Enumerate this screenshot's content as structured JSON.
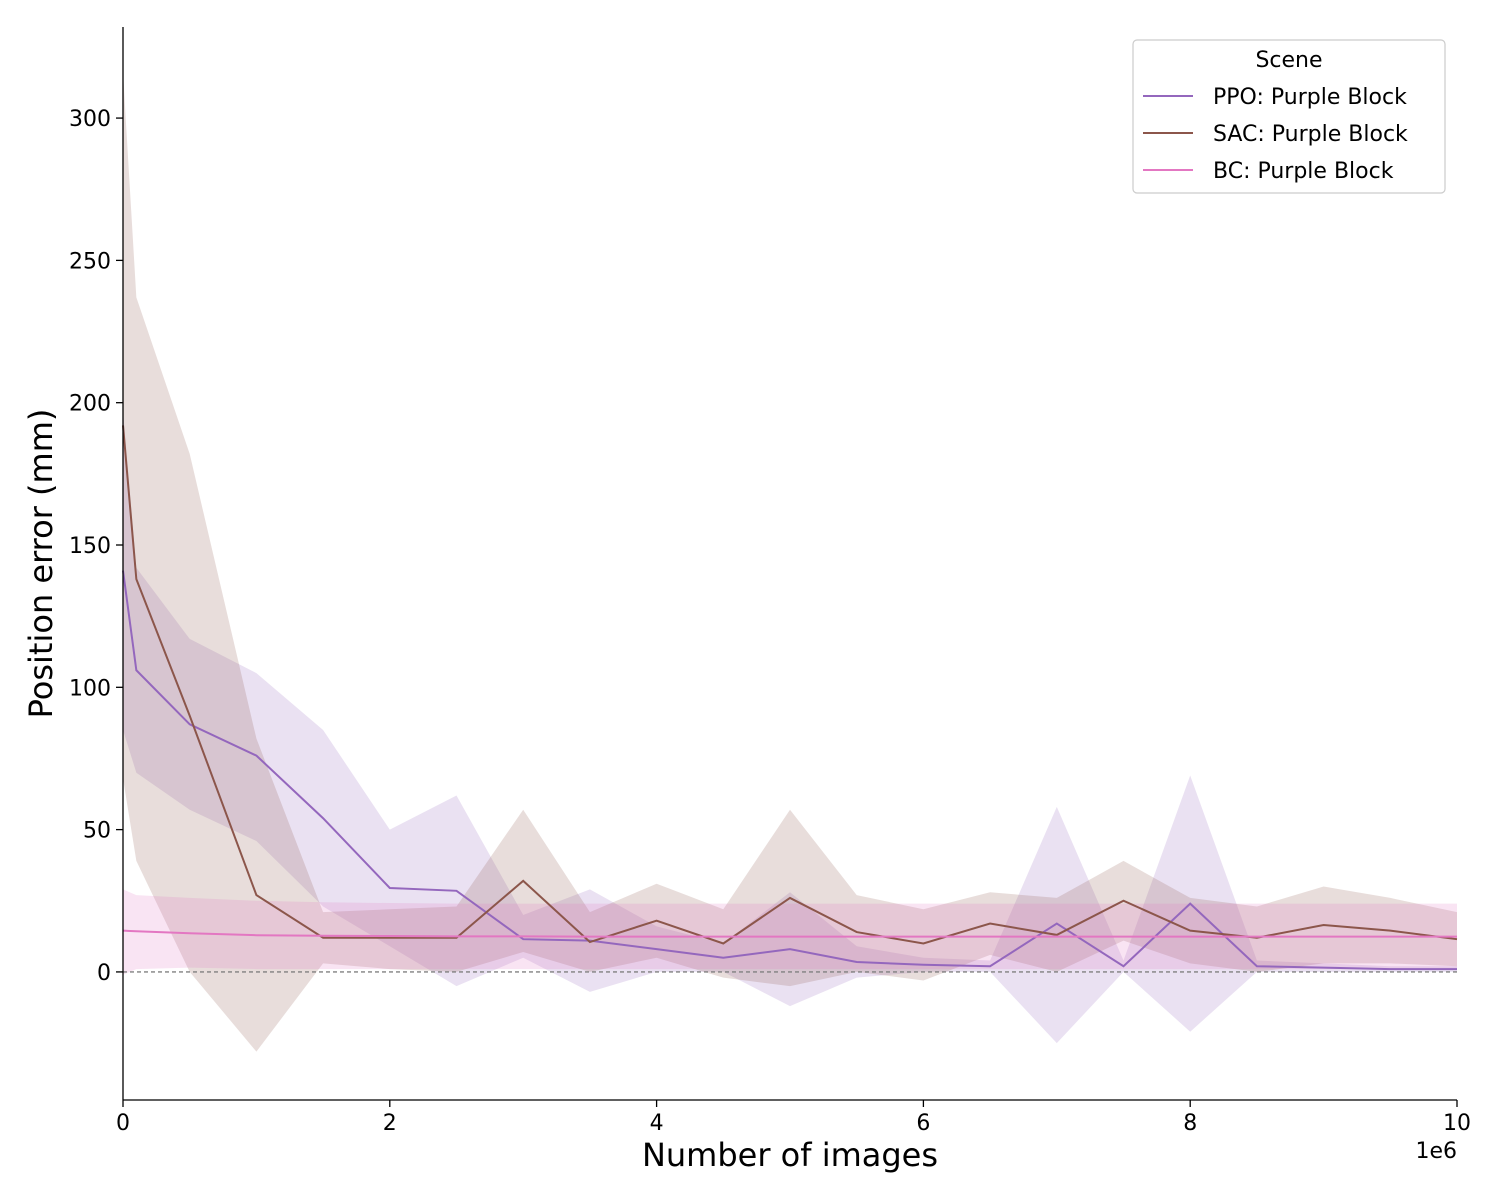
{
  "chart_data": {
    "type": "line",
    "xlabel": "Number of images",
    "ylabel": "Position error (mm)",
    "x_offset_label": "1e6",
    "xlim": [
      0,
      10
    ],
    "ylim": [
      -45,
      332
    ],
    "x_ticks": [
      0,
      2,
      4,
      6,
      8,
      10
    ],
    "y_ticks": [
      0,
      50,
      100,
      150,
      200,
      250,
      300
    ],
    "grid": false,
    "reference_line": {
      "y": 0,
      "style": "dashed",
      "color": "#808080"
    },
    "legend": {
      "title": "Scene",
      "placement": "top-right"
    },
    "series": [
      {
        "name": "PPO: Purple Block",
        "color": "#9467bd",
        "x": [
          0,
          0.1,
          0.5,
          1.0,
          1.5,
          2.0,
          2.5,
          3.0,
          3.5,
          4.0,
          4.5,
          5.0,
          5.5,
          6.0,
          6.5,
          7.0,
          7.5,
          8.0,
          8.5,
          9.0,
          9.5,
          10.0
        ],
        "y": [
          141,
          106,
          87,
          76,
          54,
          29.5,
          28.5,
          11.5,
          11,
          8,
          5,
          8,
          3.5,
          2.5,
          2,
          17,
          2,
          24,
          2,
          1.5,
          1,
          1
        ],
        "lower": [
          85,
          70,
          57,
          46,
          23,
          9,
          -5,
          5,
          -7,
          0,
          0,
          -12,
          -2,
          0,
          0,
          -25,
          0,
          -21,
          0,
          0,
          0,
          0
        ],
        "upper": [
          197,
          142,
          117,
          105,
          85,
          50,
          62,
          20,
          29,
          16,
          10,
          28,
          9,
          5,
          4,
          58,
          4,
          69,
          4,
          3,
          2,
          2
        ]
      },
      {
        "name": "SAC: Purple Block",
        "color": "#8c564b",
        "x": [
          0,
          0.1,
          0.5,
          1.0,
          1.5,
          2.0,
          2.5,
          3.0,
          3.5,
          4.0,
          4.5,
          5.0,
          5.5,
          6.0,
          6.5,
          7.0,
          7.5,
          8.0,
          8.5,
          9.0,
          9.5,
          10.0
        ],
        "y": [
          192,
          138,
          90,
          27,
          12,
          12,
          12,
          32,
          10.5,
          18,
          10,
          26,
          14,
          10,
          17,
          13,
          25,
          14.5,
          12,
          16.5,
          14.5,
          11.5
        ],
        "lower": [
          68,
          39,
          0,
          -28,
          3,
          1,
          0,
          7,
          0,
          5,
          -2,
          -5,
          0,
          -3,
          6,
          0,
          11,
          3,
          0,
          3,
          3,
          2
        ],
        "upper": [
          316,
          237,
          182,
          82,
          21,
          22,
          23,
          57,
          21,
          31,
          22,
          57,
          27,
          22,
          28,
          26,
          39,
          26,
          23,
          30,
          26,
          21
        ]
      },
      {
        "name": "BC: Purple Block",
        "color": "#e377c2",
        "x": [
          0,
          0.1,
          0.5,
          1.0,
          1.5,
          2.0,
          2.5,
          3.0,
          3.5,
          4.0,
          4.5,
          5.0,
          5.5,
          6.0,
          6.5,
          7.0,
          7.5,
          8.0,
          8.5,
          9.0,
          9.5,
          10.0
        ],
        "y": [
          14.5,
          14.3,
          13.6,
          12.9,
          12.7,
          12.6,
          12.5,
          12.5,
          12.4,
          12.4,
          12.4,
          12.4,
          12.4,
          12.4,
          12.4,
          12.4,
          12.4,
          12.4,
          12.4,
          12.4,
          12.4,
          12.4
        ],
        "lower": [
          -1,
          1,
          1.5,
          1,
          1,
          1,
          1,
          1,
          1,
          1,
          1,
          1,
          1,
          1,
          1,
          1,
          1,
          1,
          1,
          1,
          1,
          1
        ],
        "upper": [
          29,
          27,
          26,
          25,
          24.5,
          24.2,
          24,
          24,
          24,
          24,
          24,
          24,
          24,
          24,
          24,
          24,
          24,
          24,
          24,
          24,
          24,
          24
        ]
      }
    ]
  }
}
